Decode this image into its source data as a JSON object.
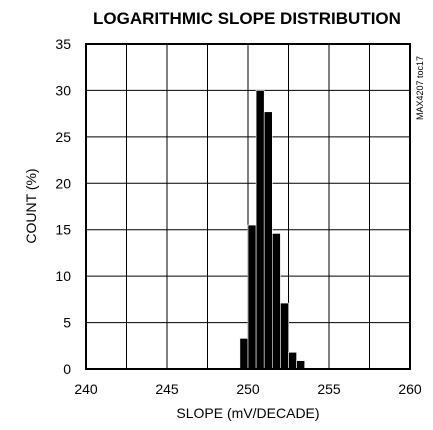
{
  "chart_data": {
    "type": "bar",
    "title": "LOGARITHMIC SLOPE DISTRIBUTION",
    "xlabel": "SLOPE (mV/DECADE)",
    "ylabel": "COUNT (%)",
    "annotation": "MAX4207 toc17",
    "xlim": [
      240,
      260
    ],
    "ylim": [
      0,
      35
    ],
    "xticks": [
      240,
      245,
      250,
      255,
      260
    ],
    "yticks": [
      0,
      5,
      10,
      15,
      20,
      25,
      30,
      35
    ],
    "grid": true,
    "bin_width": 0.5,
    "bins": [
      {
        "x": 249.75,
        "value": 3.3
      },
      {
        "x": 250.25,
        "value": 15.5
      },
      {
        "x": 250.75,
        "value": 30.0
      },
      {
        "x": 251.25,
        "value": 27.7
      },
      {
        "x": 251.75,
        "value": 14.6
      },
      {
        "x": 252.25,
        "value": 7.1
      },
      {
        "x": 252.75,
        "value": 1.8
      },
      {
        "x": 253.25,
        "value": 0.9
      }
    ]
  }
}
